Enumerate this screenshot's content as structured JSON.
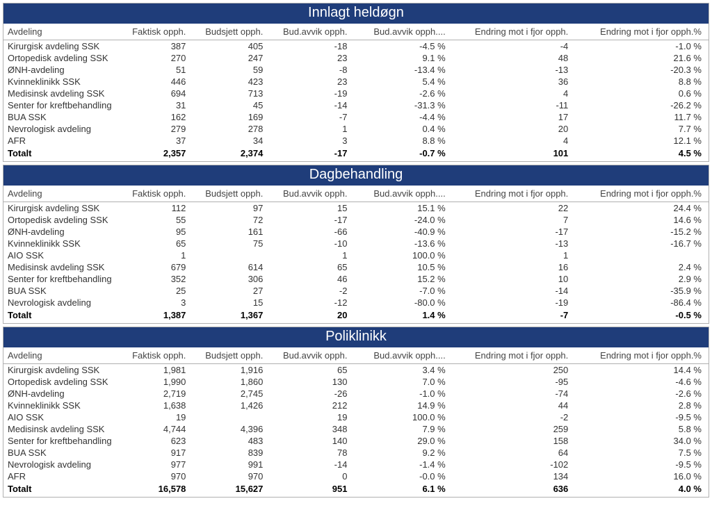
{
  "columns": [
    "Avdeling",
    "Faktisk opph.",
    "Budsjett opph.",
    "Bud.avvik opph.",
    "Bud.avvik opph....",
    "Endring mot i fjor opph.",
    "Endring mot i fjor opph.%"
  ],
  "style": {
    "header_bg": "#1f3d7a",
    "header_fg": "#ffffff",
    "border_color": "#b0b0b0",
    "text_color": "#333333",
    "font_family": "Segoe UI",
    "title_fontsize": 20,
    "body_fontsize": 13,
    "column_alignment": [
      "left",
      "right",
      "right",
      "right",
      "right",
      "right",
      "right"
    ]
  },
  "sections": [
    {
      "title": "Innlagt heldøgn",
      "rows": [
        [
          "Kirurgisk avdeling SSK",
          "387",
          "405",
          "-18",
          "-4.5 %",
          "-4",
          "-1.0 %"
        ],
        [
          "Ortopedisk avdeling SSK",
          "270",
          "247",
          "23",
          "9.1 %",
          "48",
          "21.6 %"
        ],
        [
          "ØNH-avdeling",
          "51",
          "59",
          "-8",
          "-13.4 %",
          "-13",
          "-20.3 %"
        ],
        [
          "Kvinneklinikk SSK",
          "446",
          "423",
          "23",
          "5.4 %",
          "36",
          "8.8 %"
        ],
        [
          "Medisinsk avdeling SSK",
          "694",
          "713",
          "-19",
          "-2.6 %",
          "4",
          "0.6 %"
        ],
        [
          "Senter for kreftbehandling",
          "31",
          "45",
          "-14",
          "-31.3 %",
          "-11",
          "-26.2 %"
        ],
        [
          "BUA SSK",
          "162",
          "169",
          "-7",
          "-4.4 %",
          "17",
          "11.7 %"
        ],
        [
          "Nevrologisk avdeling",
          "279",
          "278",
          "1",
          "0.4 %",
          "20",
          "7.7 %"
        ],
        [
          "AFR",
          "37",
          "34",
          "3",
          "8.8 %",
          "4",
          "12.1 %"
        ]
      ],
      "total": [
        "Totalt",
        "2,357",
        "2,374",
        "-17",
        "-0.7 %",
        "101",
        "4.5 %"
      ]
    },
    {
      "title": "Dagbehandling",
      "rows": [
        [
          "Kirurgisk avdeling SSK",
          "112",
          "97",
          "15",
          "15.1 %",
          "22",
          "24.4 %"
        ],
        [
          "Ortopedisk avdeling SSK",
          "55",
          "72",
          "-17",
          "-24.0 %",
          "7",
          "14.6 %"
        ],
        [
          "ØNH-avdeling",
          "95",
          "161",
          "-66",
          "-40.9 %",
          "-17",
          "-15.2 %"
        ],
        [
          "Kvinneklinikk SSK",
          "65",
          "75",
          "-10",
          "-13.6 %",
          "-13",
          "-16.7 %"
        ],
        [
          "AIO SSK",
          "1",
          "",
          "1",
          "100.0 %",
          "1",
          ""
        ],
        [
          "Medisinsk avdeling SSK",
          "679",
          "614",
          "65",
          "10.5 %",
          "16",
          "2.4 %"
        ],
        [
          "Senter for kreftbehandling",
          "352",
          "306",
          "46",
          "15.2 %",
          "10",
          "2.9 %"
        ],
        [
          "BUA SSK",
          "25",
          "27",
          "-2",
          "-7.0 %",
          "-14",
          "-35.9 %"
        ],
        [
          "Nevrologisk avdeling",
          "3",
          "15",
          "-12",
          "-80.0 %",
          "-19",
          "-86.4 %"
        ]
      ],
      "total": [
        "Totalt",
        "1,387",
        "1,367",
        "20",
        "1.4 %",
        "-7",
        "-0.5 %"
      ]
    },
    {
      "title": "Poliklinikk",
      "rows": [
        [
          "Kirurgisk avdeling SSK",
          "1,981",
          "1,916",
          "65",
          "3.4 %",
          "250",
          "14.4 %"
        ],
        [
          "Ortopedisk avdeling SSK",
          "1,990",
          "1,860",
          "130",
          "7.0 %",
          "-95",
          "-4.6 %"
        ],
        [
          "ØNH-avdeling",
          "2,719",
          "2,745",
          "-26",
          "-1.0 %",
          "-74",
          "-2.6 %"
        ],
        [
          "Kvinneklinikk SSK",
          "1,638",
          "1,426",
          "212",
          "14.9 %",
          "44",
          "2.8 %"
        ],
        [
          "AIO SSK",
          "19",
          "",
          "19",
          "100.0 %",
          "-2",
          "-9.5 %"
        ],
        [
          "Medisinsk avdeling SSK",
          "4,744",
          "4,396",
          "348",
          "7.9 %",
          "259",
          "5.8 %"
        ],
        [
          "Senter for kreftbehandling",
          "623",
          "483",
          "140",
          "29.0 %",
          "158",
          "34.0 %"
        ],
        [
          "BUA SSK",
          "917",
          "839",
          "78",
          "9.2 %",
          "64",
          "7.5 %"
        ],
        [
          "Nevrologisk avdeling",
          "977",
          "991",
          "-14",
          "-1.4 %",
          "-102",
          "-9.5 %"
        ],
        [
          "AFR",
          "970",
          "970",
          "0",
          "-0.0 %",
          "134",
          "16.0 %"
        ]
      ],
      "total": [
        "Totalt",
        "16,578",
        "15,627",
        "951",
        "6.1 %",
        "636",
        "4.0 %"
      ]
    }
  ]
}
